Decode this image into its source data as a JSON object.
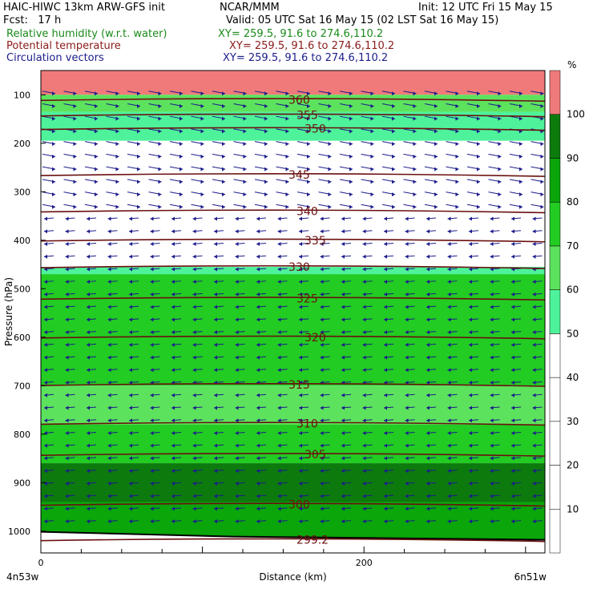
{
  "header": {
    "title_left": "HAIC-HIWC 13km ARW-GFS init",
    "center": "NCAR/MMM",
    "init": "Init: 12 UTC Fri 15 May 15",
    "fcst": "Fcst:   17 h",
    "valid": "Valid: 05 UTC Sat 16 May 15 (02 LST Sat 16 May 15)",
    "field1": "Relative humidity (w.r.t. water)",
    "field1_xy": "XY= 259.5, 91.6 to 274.6,110.2",
    "field2": "Potential temperature",
    "field2_xy": "XY= 259.5, 91.6 to 274.6,110.2",
    "field3": "Circulation vectors",
    "field3_xy": "XY= 259.5, 91.6 to 274.6,110.2",
    "field1_color": "#1a8a1a",
    "field2_color": "#8b1a1a",
    "field3_color": "#1c1c8c"
  },
  "chart_data": {
    "type": "heatmap",
    "xlabel": "Distance (km)",
    "ylabel": "Pressure (hPa)",
    "x_ticks": [
      {
        "value": 0,
        "label": "0"
      },
      {
        "value": 200,
        "label": "200"
      }
    ],
    "x_end_labels": {
      "left": "4n53w",
      "right": "6n51w"
    },
    "xlim": [
      0,
      312
    ],
    "ylim": [
      1045,
      50
    ],
    "y_ticks": [
      100,
      200,
      300,
      400,
      500,
      600,
      700,
      800,
      900,
      1000
    ],
    "colorbar": {
      "unit": "%",
      "levels": [
        10,
        20,
        30,
        40,
        50,
        60,
        70,
        80,
        90,
        100
      ],
      "colors": [
        "#ffffff",
        "#ffffff",
        "#ffffff",
        "#ffffff",
        "#ffffff",
        "#4ef29a",
        "#5de25d",
        "#22cc22",
        "#0aa60a",
        "#0d7a0d",
        "#f07a7a"
      ]
    },
    "rh_layers": [
      {
        "p_top": 50,
        "p_bottom": 100,
        "rh": 100
      },
      {
        "p_top": 100,
        "p_bottom": 135,
        "rh": 60
      },
      {
        "p_top": 135,
        "p_bottom": 195,
        "rh": 55
      },
      {
        "p_top": 195,
        "p_bottom": 275,
        "rh": 30
      },
      {
        "p_top": 275,
        "p_bottom": 455,
        "rh": 30
      },
      {
        "p_top": 455,
        "p_bottom": 470,
        "rh": 55
      },
      {
        "p_top": 470,
        "p_bottom": 700,
        "rh": 75
      },
      {
        "p_top": 700,
        "p_bottom": 780,
        "rh": 65
      },
      {
        "p_top": 780,
        "p_bottom": 860,
        "rh": 75
      },
      {
        "p_top": 860,
        "p_bottom": 940,
        "rh": 90
      },
      {
        "p_top": 940,
        "p_bottom": 1045,
        "rh": 85
      }
    ],
    "theta_contours": [
      {
        "label": "360",
        "p": 110
      },
      {
        "label": "355",
        "p": 142
      },
      {
        "label": "350",
        "p": 170
      },
      {
        "label": "345",
        "p": 265
      },
      {
        "label": "340",
        "p": 340
      },
      {
        "label": "335",
        "p": 400
      },
      {
        "label": "330",
        "p": 455
      },
      {
        "label": "325",
        "p": 520
      },
      {
        "label": "320",
        "p": 600
      },
      {
        "label": "315",
        "p": 698
      },
      {
        "label": "310",
        "p": 778
      },
      {
        "label": "305",
        "p": 842
      },
      {
        "label": "300",
        "p": 945
      },
      {
        "label": "299.2",
        "p": 1018
      }
    ],
    "ground_label": "299.2"
  }
}
